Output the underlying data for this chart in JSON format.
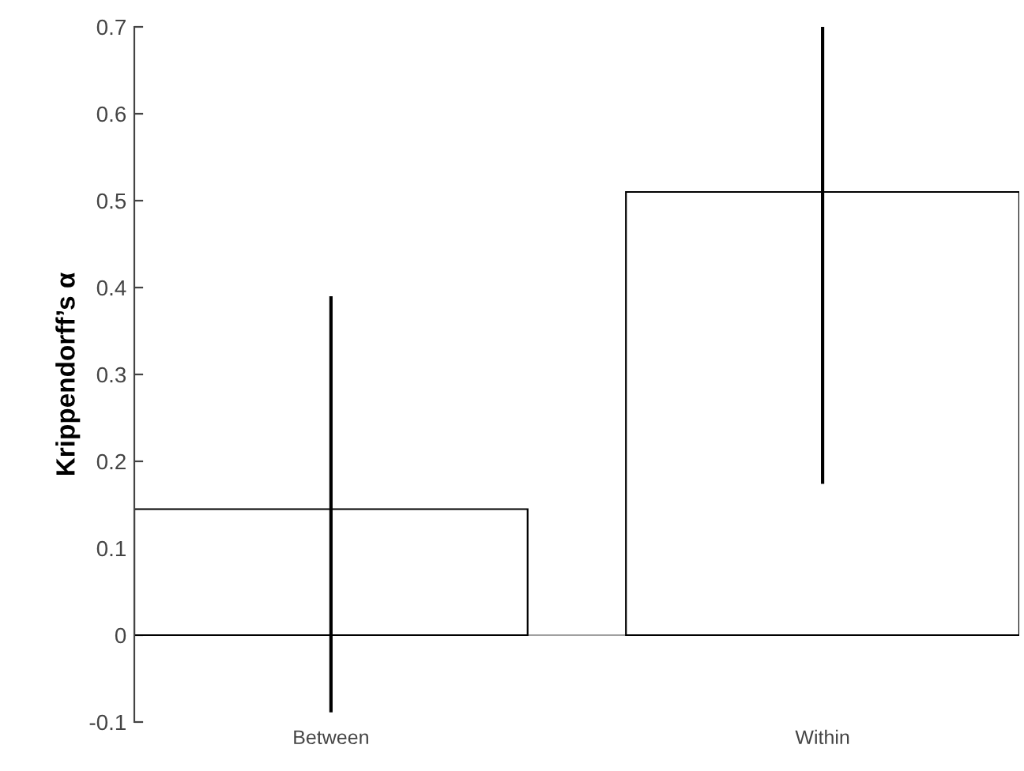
{
  "chart_data": {
    "type": "bar",
    "ylabel": "Krippendorff’s α",
    "categories": [
      "Between",
      "Within"
    ],
    "values": [
      0.145,
      0.51
    ],
    "errors": [
      [
        -0.087,
        0.388
      ],
      [
        0.176,
        0.7
      ]
    ],
    "color": "#ffffff",
    "ylim": [
      -0.1,
      0.7
    ],
    "yticks": [
      -0.1,
      0,
      0.1,
      0.2,
      0.3,
      0.4,
      0.5,
      0.6,
      0.7
    ],
    "ref_lines": [
      {
        "axis": "y",
        "value": 0,
        "color": "#a0a0a0"
      }
    ],
    "grid": false,
    "legend": false
  }
}
